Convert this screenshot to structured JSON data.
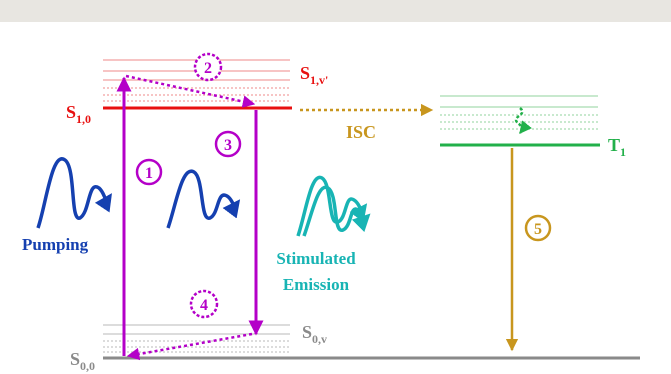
{
  "labels": {
    "s10": "S",
    "s10_sub": "1,0",
    "s1v": "S",
    "s1v_sub": "1,v'",
    "s00": "S",
    "s00_sub": "0,0",
    "s0v": "S",
    "s0v_sub": "0,v",
    "t1": "T",
    "t1_sub": "1",
    "isc": "ISC",
    "pumping": "Pumping",
    "stimulated_line1": "Stimulated",
    "stimulated_line2": "Emission"
  },
  "steps": [
    "1",
    "2",
    "3",
    "4",
    "5"
  ],
  "colors": {
    "magenta": "#b400c8",
    "red": "#e81010",
    "pink_level": "#f2a0a0",
    "green": "#22b04a",
    "light_green": "#a8dcb0",
    "gold": "#c8961e",
    "gray": "#8a8a8a",
    "light_gray": "#c8c8c8",
    "navy": "#1540b0",
    "teal": "#18b4b4"
  }
}
